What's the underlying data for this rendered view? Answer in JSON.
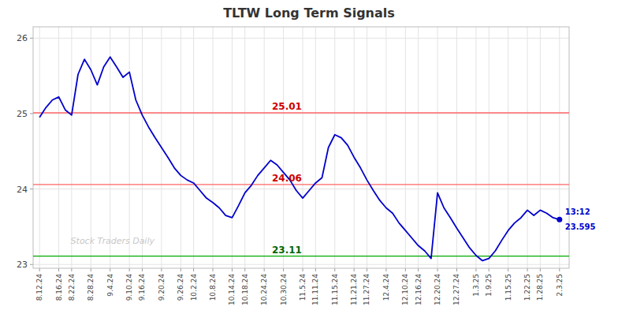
{
  "chart_data": {
    "type": "line",
    "title": "TLTW Long Term Signals",
    "color": "#0000cc",
    "categories": [
      "8.12.24",
      null,
      null,
      "8.16.24",
      null,
      "8.22.24",
      null,
      null,
      "8.28.24",
      null,
      null,
      "9.4.24",
      null,
      null,
      "9.10.24",
      null,
      "9.16.24",
      null,
      null,
      "9.20.24",
      null,
      null,
      "9.26.24",
      null,
      "10.2.24",
      null,
      null,
      "10.8.24",
      null,
      null,
      "10.14.24",
      null,
      "10.18.24",
      null,
      null,
      "10.24.24",
      null,
      null,
      "10.30.24",
      null,
      null,
      "11.5.24",
      null,
      "11.11.24",
      null,
      null,
      "11.15.24",
      null,
      null,
      "11.21.24",
      null,
      "11.27.24",
      null,
      null,
      "12.4.24",
      null,
      null,
      "12.10.24",
      null,
      "12.16.24",
      null,
      null,
      "12.20.24",
      null,
      null,
      "12.27.24",
      null,
      null,
      "1.3.25",
      null,
      "1.9.25",
      null,
      null,
      "1.15.25",
      null,
      null,
      "1.22.25",
      null,
      "1.28.25",
      null,
      null,
      "2.3.25"
    ],
    "values": [
      24.95,
      25.08,
      25.18,
      25.22,
      25.05,
      24.98,
      25.52,
      25.72,
      25.58,
      25.38,
      25.62,
      25.75,
      25.62,
      25.48,
      25.55,
      25.18,
      24.98,
      24.82,
      24.68,
      24.55,
      24.42,
      24.28,
      24.18,
      24.12,
      24.08,
      23.98,
      23.88,
      23.82,
      23.75,
      23.65,
      23.62,
      23.78,
      23.95,
      24.05,
      24.18,
      24.28,
      24.38,
      24.32,
      24.22,
      24.12,
      23.98,
      23.88,
      23.98,
      24.08,
      24.15,
      24.55,
      24.72,
      24.68,
      24.58,
      24.42,
      24.28,
      24.12,
      23.98,
      23.85,
      23.75,
      23.68,
      23.55,
      23.45,
      23.35,
      23.25,
      23.18,
      23.08,
      23.95,
      23.75,
      23.62,
      23.48,
      23.35,
      23.22,
      23.12,
      23.05,
      23.08,
      23.18,
      23.32,
      23.45,
      23.55,
      23.62,
      23.72,
      23.65,
      23.72,
      23.68,
      23.62,
      23.595
    ],
    "value_labels": [
      null,
      null,
      null,
      null,
      null,
      null,
      null,
      null,
      null,
      null,
      null,
      null,
      null,
      null,
      null,
      null,
      null,
      null,
      null,
      null,
      null,
      null,
      null,
      null,
      null,
      null,
      null,
      null,
      null,
      null,
      null,
      null,
      null,
      null,
      null,
      null,
      null,
      null,
      null,
      null,
      null,
      null,
      null,
      null,
      null,
      null,
      null,
      null,
      null,
      null,
      null,
      null,
      null,
      null,
      null,
      null,
      null,
      null,
      null,
      null,
      null,
      null,
      null,
      null,
      null,
      null,
      null,
      null,
      null,
      null,
      null,
      null,
      null,
      null,
      null,
      null,
      null,
      null,
      null,
      null,
      null,
      "23.595"
    ],
    "annotation": "13:12",
    "watermark": "Stock Traders Daily",
    "reference_lines": [
      {
        "value": 25.01,
        "label": "25.01",
        "color": "#ff6666",
        "label_color": "#cc0000"
      },
      {
        "value": 24.06,
        "label": "24.06",
        "color": "#ff6666",
        "label_color": "#cc0000"
      },
      {
        "value": 23.11,
        "label": "23.11",
        "color": "#00aa00",
        "label_color": "#006600"
      }
    ],
    "ylim": [
      22.95,
      26.15
    ],
    "yticks": [
      23,
      24,
      25,
      26
    ],
    "grid": true
  }
}
